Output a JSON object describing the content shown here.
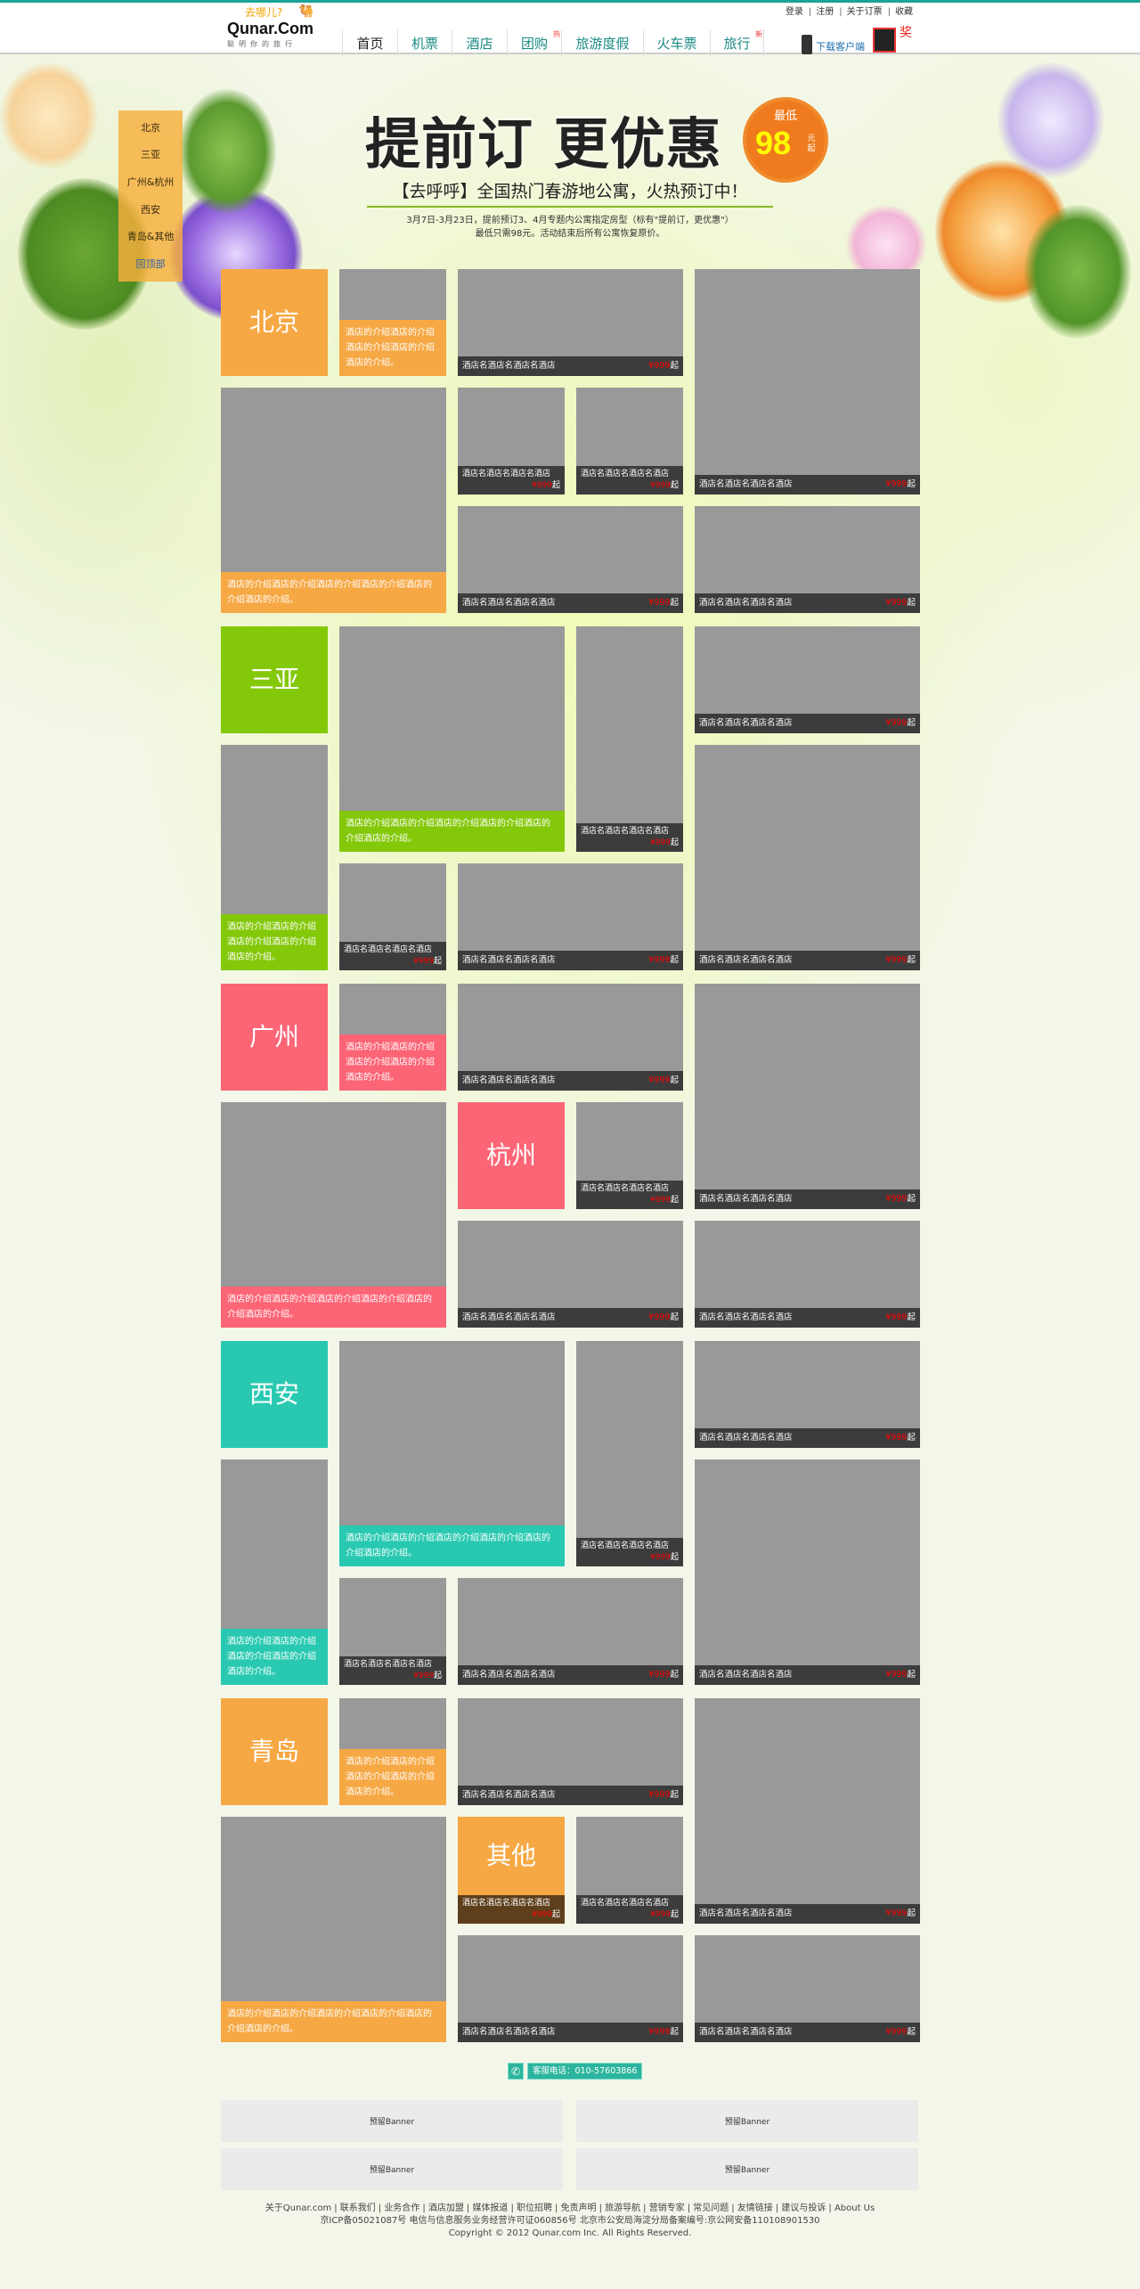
{
  "header": {
    "logo": {
      "tagline_top": "去哪儿?",
      "brand": "Qunar.Com",
      "slogan": "聪明你的旅行"
    },
    "nav": [
      {
        "label": "首页",
        "badge": ""
      },
      {
        "label": "机票",
        "badge": ""
      },
      {
        "label": "酒店",
        "badge": ""
      },
      {
        "label": "团购",
        "badge": "热"
      },
      {
        "label": "旅游度假",
        "badge": ""
      },
      {
        "label": "火车票",
        "badge": ""
      },
      {
        "label": "旅行",
        "badge": "新"
      }
    ],
    "top_links": [
      "登录",
      "注册",
      "关于订票",
      "收藏"
    ],
    "download": {
      "label": "下载客户端",
      "prize": "奖"
    }
  },
  "side_nav": [
    "北京",
    "三亚",
    "广州&杭州",
    "西安",
    "青岛&其他",
    "回顶部"
  ],
  "hero": {
    "title": "提前订 更优惠",
    "badge_top": "最低",
    "badge_price": "98",
    "badge_unit": "元起",
    "subtitle": "【去呼呼】全国热门春游地公寓，火热预订中！",
    "desc_line1": "3月7日-3月23日，提前预订3、4月专题内公寓指定房型（标有\"提前订，更优惠\"）",
    "desc_line2": "最低只需98元。活动结束后所有公寓恢复原价。"
  },
  "tiles": {
    "hotel_name": "酒店名酒店名酒店名酒店",
    "price": "¥999",
    "price_suffix": "起",
    "intro_text": "酒店的介绍酒店的介绍酒店的介绍酒店的介绍酒店的介绍。",
    "intro_text_wide": "酒店的介绍酒店的介绍酒店的介绍酒店的介绍酒店的介绍酒店的介绍。"
  },
  "sections": [
    {
      "city": "北京",
      "color": "#f6a844",
      "second_city": ""
    },
    {
      "city": "三亚",
      "color": "#84c80a",
      "second_city": ""
    },
    {
      "city": "广州",
      "color": "#fc6576",
      "second_city": "杭州"
    },
    {
      "city": "西安",
      "color": "#29c9b1",
      "second_city": ""
    },
    {
      "city": "青岛",
      "color": "#f6a844",
      "second_city": "其他"
    }
  ],
  "colors": {
    "bar": "#3c3c3c",
    "placeholder": "#999999",
    "other_bar": "#5e3f1c",
    "accent": "#1aa596"
  },
  "service_phone": "客服电话：010-57603866",
  "banners": [
    "预留Banner",
    "预留Banner",
    "预留Banner",
    "预留Banner"
  ],
  "footer": {
    "links": [
      "关于Qunar.com",
      "联系我们",
      "业务合作",
      "酒店加盟",
      "媒体报道",
      "职位招聘",
      "免责声明",
      "旅游导航",
      "营销专家",
      "常见问题",
      "友情链接",
      "建议与投诉",
      "About Us"
    ],
    "icp": "京ICP备05021087号   电信与信息服务业务经营许可证060856号   北京市公安局海淀分局备案编号:京公网安备110108901530",
    "copyright": "Copyright © 2012 Qunar.com Inc. All Rights Reserved."
  }
}
